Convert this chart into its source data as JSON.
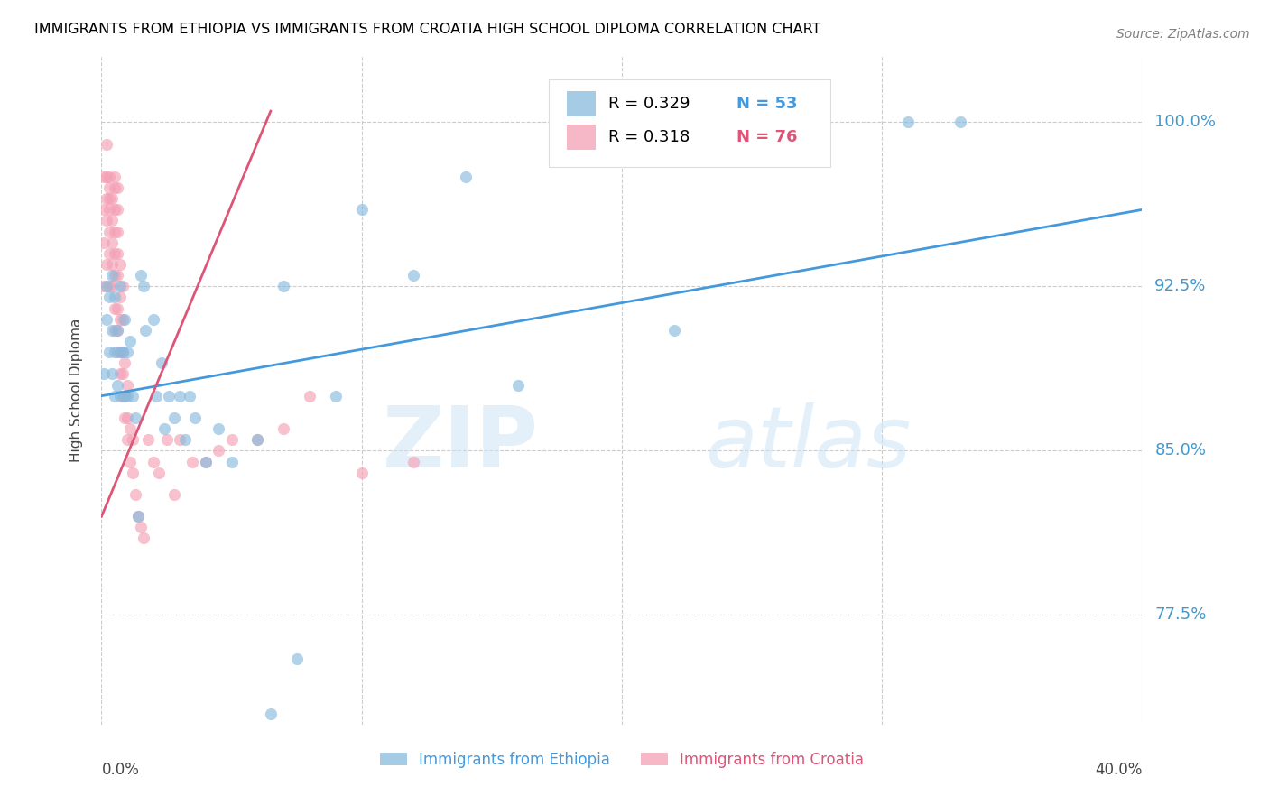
{
  "title": "IMMIGRANTS FROM ETHIOPIA VS IMMIGRANTS FROM CROATIA HIGH SCHOOL DIPLOMA CORRELATION CHART",
  "source": "Source: ZipAtlas.com",
  "ylabel": "High School Diploma",
  "ytick_labels": [
    "100.0%",
    "92.5%",
    "85.0%",
    "77.5%"
  ],
  "ytick_values": [
    1.0,
    0.925,
    0.85,
    0.775
  ],
  "legend_ethiopia_R": "R = 0.329",
  "legend_ethiopia_N": "N = 53",
  "legend_croatia_R": "R = 0.318",
  "legend_croatia_N": "N = 76",
  "watermark_zip": "ZIP",
  "watermark_atlas": "atlas",
  "ethiopia_color": "#88bbdd",
  "croatia_color": "#f4a0b5",
  "ethiopia_line_color": "#4499dd",
  "croatia_line_color": "#dd5577",
  "xmin": 0.0,
  "xmax": 0.4,
  "ymin": 0.725,
  "ymax": 1.03,
  "ethiopia_scatter_x": [
    0.001,
    0.002,
    0.002,
    0.003,
    0.003,
    0.004,
    0.004,
    0.004,
    0.005,
    0.005,
    0.005,
    0.006,
    0.006,
    0.007,
    0.007,
    0.007,
    0.008,
    0.009,
    0.009,
    0.01,
    0.01,
    0.011,
    0.012,
    0.013,
    0.014,
    0.015,
    0.016,
    0.017,
    0.02,
    0.021,
    0.023,
    0.024,
    0.026,
    0.028,
    0.03,
    0.032,
    0.034,
    0.036,
    0.04,
    0.045,
    0.05,
    0.06,
    0.065,
    0.07,
    0.075,
    0.09,
    0.1,
    0.12,
    0.14,
    0.16,
    0.22,
    0.31,
    0.33
  ],
  "ethiopia_scatter_y": [
    0.885,
    0.91,
    0.925,
    0.895,
    0.92,
    0.885,
    0.905,
    0.93,
    0.875,
    0.895,
    0.92,
    0.88,
    0.905,
    0.875,
    0.895,
    0.925,
    0.895,
    0.875,
    0.91,
    0.875,
    0.895,
    0.9,
    0.875,
    0.865,
    0.82,
    0.93,
    0.925,
    0.905,
    0.91,
    0.875,
    0.89,
    0.86,
    0.875,
    0.865,
    0.875,
    0.855,
    0.875,
    0.865,
    0.845,
    0.86,
    0.845,
    0.855,
    0.73,
    0.925,
    0.755,
    0.875,
    0.96,
    0.93,
    0.975,
    0.88,
    0.905,
    1.0,
    1.0
  ],
  "croatia_scatter_x": [
    0.001,
    0.001,
    0.001,
    0.001,
    0.002,
    0.002,
    0.002,
    0.002,
    0.002,
    0.003,
    0.003,
    0.003,
    0.003,
    0.003,
    0.003,
    0.003,
    0.004,
    0.004,
    0.004,
    0.004,
    0.004,
    0.005,
    0.005,
    0.005,
    0.005,
    0.005,
    0.005,
    0.005,
    0.005,
    0.006,
    0.006,
    0.006,
    0.006,
    0.006,
    0.006,
    0.006,
    0.006,
    0.007,
    0.007,
    0.007,
    0.007,
    0.007,
    0.008,
    0.008,
    0.008,
    0.008,
    0.008,
    0.009,
    0.009,
    0.009,
    0.01,
    0.01,
    0.01,
    0.011,
    0.011,
    0.012,
    0.012,
    0.013,
    0.014,
    0.015,
    0.016,
    0.018,
    0.02,
    0.022,
    0.025,
    0.028,
    0.03,
    0.035,
    0.04,
    0.045,
    0.05,
    0.06,
    0.07,
    0.08,
    0.1,
    0.12
  ],
  "croatia_scatter_y": [
    0.925,
    0.945,
    0.96,
    0.975,
    0.935,
    0.955,
    0.965,
    0.975,
    0.99,
    0.925,
    0.94,
    0.95,
    0.96,
    0.965,
    0.97,
    0.975,
    0.925,
    0.935,
    0.945,
    0.955,
    0.965,
    0.905,
    0.915,
    0.93,
    0.94,
    0.95,
    0.96,
    0.97,
    0.975,
    0.895,
    0.905,
    0.915,
    0.93,
    0.94,
    0.95,
    0.96,
    0.97,
    0.885,
    0.895,
    0.91,
    0.92,
    0.935,
    0.875,
    0.885,
    0.895,
    0.91,
    0.925,
    0.865,
    0.875,
    0.89,
    0.855,
    0.865,
    0.88,
    0.845,
    0.86,
    0.84,
    0.855,
    0.83,
    0.82,
    0.815,
    0.81,
    0.855,
    0.845,
    0.84,
    0.855,
    0.83,
    0.855,
    0.845,
    0.845,
    0.85,
    0.855,
    0.855,
    0.86,
    0.875,
    0.84,
    0.845
  ]
}
